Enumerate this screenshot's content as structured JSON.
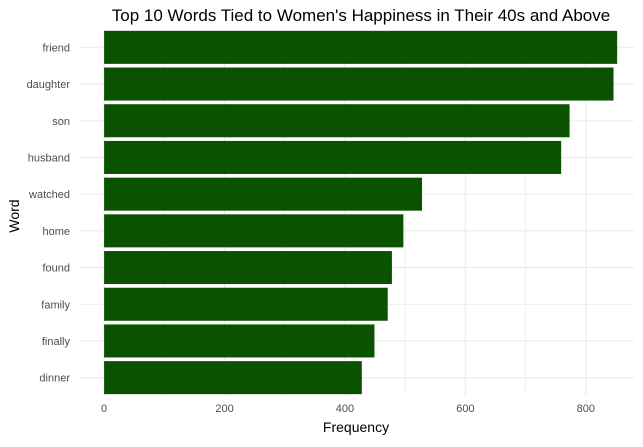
{
  "chart_data": {
    "type": "bar",
    "orientation": "horizontal",
    "title": "Top 10 Words Tied to Women's Happiness in Their 40s and Above",
    "xlabel": "Frequency",
    "ylabel": "Word",
    "categories": [
      "friend",
      "daughter",
      "son",
      "husband",
      "watched",
      "home",
      "found",
      "family",
      "finally",
      "dinner"
    ],
    "values": [
      852,
      846,
      773,
      759,
      528,
      497,
      478,
      471,
      449,
      428
    ],
    "xlim": [
      -40,
      880
    ],
    "xticks": [
      0,
      200,
      400,
      600,
      800
    ],
    "grid": true,
    "legend": "none",
    "bar_color": "#0a5200",
    "grid_color": "#ebebeb"
  }
}
